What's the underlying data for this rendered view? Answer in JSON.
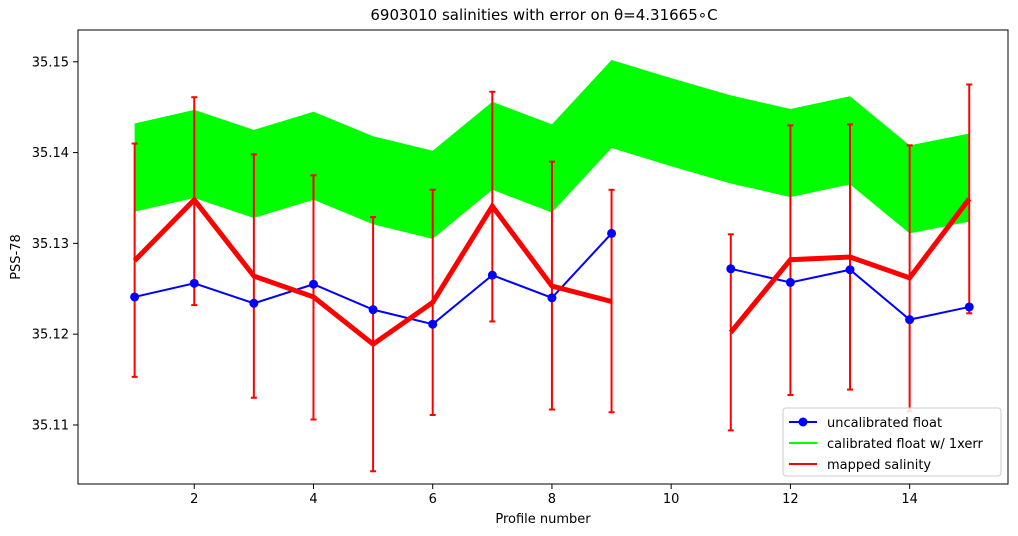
{
  "chart_data": {
    "type": "line",
    "title": "6903010 salinities with error on θ=4.31665∘C",
    "xlabel": "Profile number",
    "ylabel": "PSS-78",
    "xlim": [
      0.05,
      15.65
    ],
    "ylim": [
      35.1035,
      35.1535
    ],
    "x_ticks": [
      2,
      4,
      6,
      8,
      10,
      12,
      14
    ],
    "y_ticks": [
      35.11,
      35.12,
      35.13,
      35.14,
      35.15
    ],
    "y_tick_labels": [
      "35.11",
      "35.12",
      "35.13",
      "35.14",
      "35.15"
    ],
    "grid": false,
    "legend_position": "lower-right",
    "series": [
      {
        "name": "uncalibrated float",
        "kind": "line-markers",
        "color": "#0000ff",
        "segments": [
          {
            "x": [
              1,
              2,
              3,
              4,
              5,
              6,
              7,
              8,
              9
            ],
            "y": [
              35.1241,
              35.1256,
              35.1234,
              35.1255,
              35.1227,
              35.1211,
              35.1265,
              35.124,
              35.1311
            ]
          },
          {
            "x": [
              11,
              12,
              13,
              14,
              15
            ],
            "y": [
              35.1272,
              35.1257,
              35.1271,
              35.1216,
              35.123
            ]
          }
        ]
      },
      {
        "name": "calibrated float w/ 1xerr",
        "kind": "band",
        "color": "#00ff00",
        "x": [
          1,
          2,
          3,
          4,
          5,
          6,
          7,
          8,
          9,
          10,
          11,
          12,
          13,
          14,
          15
        ],
        "upper": [
          35.1432,
          35.1447,
          35.1425,
          35.1445,
          35.1418,
          35.1402,
          35.1456,
          35.1431,
          35.1502,
          35.1482,
          35.1463,
          35.1448,
          35.1462,
          35.1408,
          35.1421
        ],
        "lower": [
          35.1335,
          35.135,
          35.1328,
          35.1348,
          35.1321,
          35.1305,
          35.1359,
          35.1334,
          35.1405,
          35.1385,
          35.1366,
          35.1351,
          35.1365,
          35.1311,
          35.1324
        ]
      },
      {
        "name": "mapped salinity",
        "kind": "line-errorbars",
        "color": "#ff0000",
        "segments": [
          {
            "x": [
              1,
              2,
              3,
              4,
              5,
              6,
              7,
              8,
              9
            ],
            "y": [
              35.1281,
              35.1348,
              35.1264,
              35.1241,
              35.1189,
              35.1235,
              35.1341,
              35.1253,
              35.1236
            ]
          },
          {
            "x": [
              11,
              12,
              13,
              14,
              15
            ],
            "y": [
              35.1202,
              35.1282,
              35.1285,
              35.1262,
              35.1349
            ]
          }
        ],
        "errorbars": [
          {
            "x": 1,
            "low": 35.1153,
            "high": 35.141
          },
          {
            "x": 2,
            "low": 35.1232,
            "high": 35.1461
          },
          {
            "x": 3,
            "low": 35.113,
            "high": 35.1398
          },
          {
            "x": 4,
            "low": 35.1106,
            "high": 35.1375
          },
          {
            "x": 5,
            "low": 35.1049,
            "high": 35.1329
          },
          {
            "x": 6,
            "low": 35.1111,
            "high": 35.1359
          },
          {
            "x": 7,
            "low": 35.1214,
            "high": 35.1467
          },
          {
            "x": 8,
            "low": 35.1117,
            "high": 35.139
          },
          {
            "x": 9,
            "low": 35.1114,
            "high": 35.1359
          },
          {
            "x": 11,
            "low": 35.1094,
            "high": 35.131
          },
          {
            "x": 12,
            "low": 35.1133,
            "high": 35.143
          },
          {
            "x": 13,
            "low": 35.1139,
            "high": 35.1431
          },
          {
            "x": 14,
            "low": 35.1115,
            "high": 35.1408
          },
          {
            "x": 15,
            "low": 35.1223,
            "high": 35.1475
          }
        ]
      }
    ]
  }
}
